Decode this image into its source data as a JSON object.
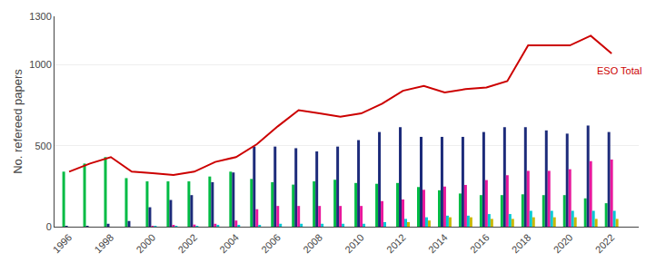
{
  "chart_data": {
    "type": "bar",
    "x": [
      1996,
      1997,
      1998,
      1999,
      2000,
      2001,
      2002,
      2003,
      2004,
      2005,
      2006,
      2007,
      2008,
      2009,
      2010,
      2011,
      2012,
      2013,
      2014,
      2015,
      2016,
      2017,
      2018,
      2019,
      2020,
      2021,
      2022
    ],
    "xlim": [
      1995.3,
      2023.3
    ],
    "xticks": [
      1996,
      1998,
      2000,
      2002,
      2004,
      2006,
      2008,
      2010,
      2012,
      2014,
      2016,
      2018,
      2020,
      2022
    ],
    "ylim": [
      0,
      1300
    ],
    "yticks": [
      0,
      500,
      1000,
      1300
    ],
    "ylabel": "No. refereed papers",
    "grid": "y",
    "series": [
      {
        "color": "#00bb44",
        "values": [
          340,
          390,
          430,
          300,
          280,
          280,
          280,
          310,
          340,
          295,
          275,
          260,
          280,
          290,
          270,
          265,
          270,
          245,
          225,
          205,
          195,
          195,
          200,
          195,
          195,
          175,
          145
        ]
      },
      {
        "color": "#1c2b7a",
        "values": [
          2,
          2,
          18,
          35,
          120,
          165,
          195,
          275,
          335,
          495,
          495,
          485,
          465,
          495,
          535,
          585,
          615,
          555,
          555,
          555,
          585,
          615,
          615,
          595,
          575,
          625,
          585
        ]
      },
      {
        "color": "#e8189c",
        "values": [
          0,
          0,
          0,
          0,
          5,
          8,
          13,
          18,
          38,
          108,
          128,
          128,
          128,
          128,
          128,
          158,
          168,
          228,
          248,
          258,
          288,
          318,
          345,
          345,
          355,
          405,
          415
        ]
      },
      {
        "color": "#00c8d4",
        "values": [
          0,
          0,
          0,
          0,
          4,
          4,
          4,
          8,
          8,
          8,
          18,
          18,
          18,
          18,
          18,
          28,
          48,
          58,
          68,
          68,
          78,
          78,
          98,
          98,
          98,
          98,
          98
        ]
      },
      {
        "color": "#c8b800",
        "values": [
          0,
          0,
          0,
          0,
          0,
          0,
          0,
          0,
          0,
          0,
          0,
          0,
          0,
          0,
          0,
          0,
          28,
          38,
          58,
          58,
          48,
          48,
          58,
          58,
          58,
          48,
          48
        ]
      },
      {
        "name": "ESO Total",
        "type": "line",
        "color": "#cc0000",
        "values": [
          340,
          390,
          430,
          340,
          330,
          320,
          340,
          400,
          430,
          510,
          620,
          720,
          700,
          680,
          700,
          760,
          840,
          870,
          830,
          850,
          860,
          900,
          1120,
          1120,
          1120,
          1180,
          1070
        ]
      }
    ]
  }
}
